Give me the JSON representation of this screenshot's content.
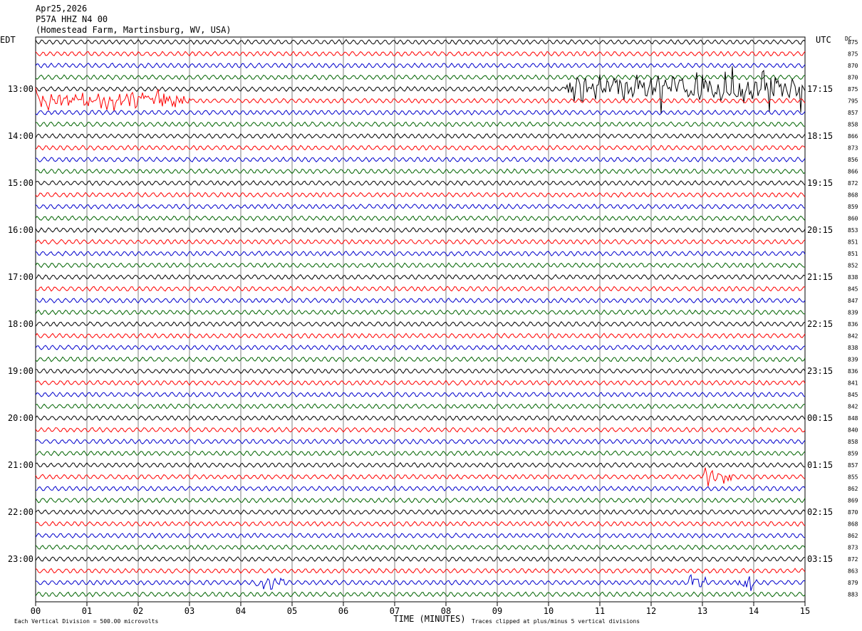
{
  "header": {
    "date": "Apr25,2026",
    "station": "P57A HHZ N4 00",
    "location": "(Homestead Farm, Martinsburg, WV, USA)"
  },
  "labels": {
    "left_tz": "EDT",
    "right_tz": "UTC",
    "dc_label": "DC",
    "x_title": "TIME (MINUTES)",
    "footer_left": "Each Vertical Division =  500.00 microvolts",
    "footer_right": "Traces clipped at plus/minus 5 vertical divisions"
  },
  "colors": {
    "cycle": [
      "#000000",
      "#ff0000",
      "#0000cc",
      "#006400"
    ],
    "grid": "#808080"
  },
  "chart_data": {
    "type": "line",
    "title": "",
    "xlabel": "TIME (MINUTES)",
    "xlim": [
      0,
      15
    ],
    "x_ticks": [
      "00",
      "01",
      "02",
      "03",
      "04",
      "05",
      "06",
      "07",
      "08",
      "09",
      "10",
      "11",
      "12",
      "13",
      "14",
      "15"
    ],
    "left_hour_labels": [
      "13:00",
      "14:00",
      "15:00",
      "16:00",
      "17:00",
      "18:00",
      "19:00",
      "20:00",
      "21:00",
      "22:00",
      "23:00"
    ],
    "right_hour_labels": [
      "17:15",
      "18:15",
      "19:15",
      "20:15",
      "21:15",
      "22:15",
      "23:15",
      "00:15",
      "01:15",
      "02:15",
      "03:15"
    ],
    "first_labeled_row": 4,
    "rows_per_hour": 4,
    "row_count": 48,
    "dc_values": [
      "875",
      "875",
      "870",
      "870",
      "875",
      "795",
      "857",
      "858",
      "866",
      "873",
      "856",
      "866",
      "872",
      "868",
      "859",
      "860",
      "853",
      "851",
      "851",
      "852",
      "838",
      "845",
      "847",
      "839",
      "836",
      "842",
      "838",
      "839",
      "836",
      "841",
      "845",
      "842",
      "848",
      "840",
      "858",
      "859",
      "857",
      "855",
      "862",
      "869",
      "870",
      "868",
      "862",
      "873",
      "872",
      "863",
      "879",
      "883"
    ],
    "events": [
      {
        "row": 4,
        "start_min": 10.3,
        "end_min": 15.0,
        "strength": 1.0
      },
      {
        "row": 5,
        "start_min": 0.0,
        "end_min": 3.0,
        "strength": 0.6
      },
      {
        "row": 37,
        "start_min": 13.0,
        "end_min": 13.6,
        "strength": 0.5
      },
      {
        "row": 46,
        "start_min": 4.3,
        "end_min": 4.9,
        "strength": 0.35
      },
      {
        "row": 46,
        "start_min": 12.7,
        "end_min": 13.1,
        "strength": 0.5
      },
      {
        "row": 46,
        "start_min": 13.7,
        "end_min": 14.1,
        "strength": 0.6
      }
    ]
  }
}
